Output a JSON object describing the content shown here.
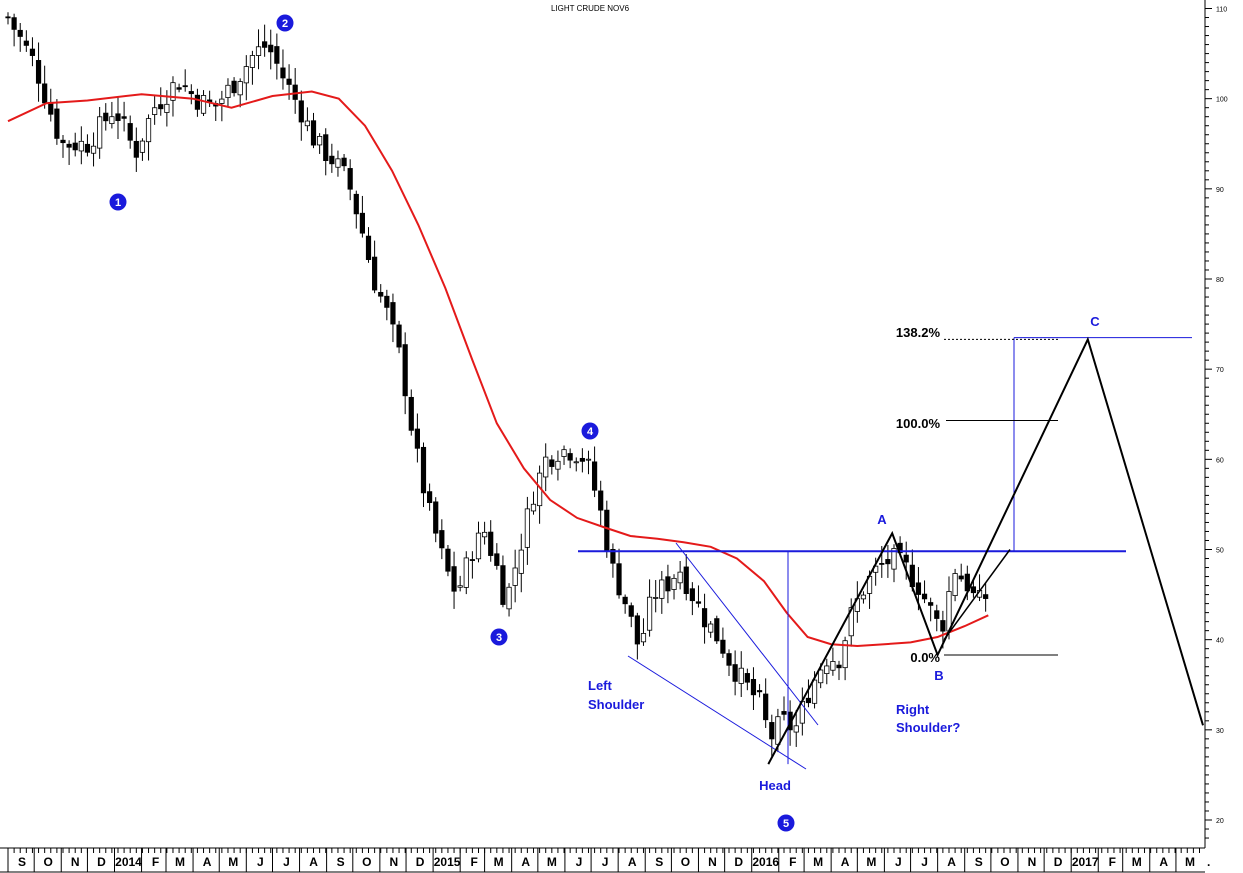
{
  "chart_data": {
    "type": "candlestick",
    "title": "LIGHT CRUDE NOV6",
    "y_axis": {
      "ticks": [
        20,
        30,
        40,
        50,
        60,
        70,
        80,
        90,
        100,
        110
      ],
      "ylim": [
        18.5,
        111
      ]
    },
    "months": [
      "S",
      "O",
      "N",
      "D",
      "2014",
      "F",
      "M",
      "A",
      "M",
      "J",
      "J",
      "A",
      "S",
      "O",
      "N",
      "D",
      "2015",
      "F",
      "M",
      "A",
      "M",
      "J",
      "J",
      "A",
      "S",
      "O",
      "N",
      "D",
      "2016",
      "F",
      "M",
      "A",
      "M",
      "J",
      "J",
      "A",
      "S",
      "O",
      "N",
      "D",
      "2017",
      "F",
      "M",
      "A",
      "M"
    ],
    "close_path": [
      [
        "2013-09-01",
        109
      ],
      [
        "2013-10-01",
        104
      ],
      [
        "2013-11-01",
        95
      ],
      [
        "2013-12-01",
        95
      ],
      [
        "2014-01-01",
        99
      ],
      [
        "2014-01-25",
        94
      ],
      [
        "2014-02-15",
        99
      ],
      [
        "2014-03-15",
        102
      ],
      [
        "2014-04-05",
        100
      ],
      [
        "2014-04-25",
        99
      ],
      [
        "2014-05-20",
        102
      ],
      [
        "2014-06-10",
        105
      ],
      [
        "2014-06-25",
        106
      ],
      [
        "2014-07-10",
        103
      ],
      [
        "2014-08-01",
        99
      ],
      [
        "2014-08-20",
        95
      ],
      [
        "2014-09-10",
        93
      ],
      [
        "2014-09-25",
        91
      ],
      [
        "2014-10-10",
        86
      ],
      [
        "2014-10-25",
        80
      ],
      [
        "2014-11-10",
        76
      ],
      [
        "2014-11-25",
        71
      ],
      [
        "2014-12-10",
        62
      ],
      [
        "2014-12-25",
        55
      ],
      [
        "2015-01-15",
        48
      ],
      [
        "2015-01-28",
        45
      ],
      [
        "2015-02-15",
        50
      ],
      [
        "2015-03-01",
        52
      ],
      [
        "2015-03-15",
        48
      ],
      [
        "2015-03-25",
        44
      ],
      [
        "2015-04-10",
        50
      ],
      [
        "2015-04-25",
        56
      ],
      [
        "2015-05-10",
        60
      ],
      [
        "2015-05-25",
        61
      ],
      [
        "2015-06-10",
        61
      ],
      [
        "2015-06-25",
        60
      ],
      [
        "2015-07-10",
        55
      ],
      [
        "2015-07-25",
        48
      ],
      [
        "2015-08-10",
        44
      ],
      [
        "2015-08-25",
        39
      ],
      [
        "2015-09-10",
        45
      ],
      [
        "2015-09-25",
        46
      ],
      [
        "2015-10-10",
        48
      ],
      [
        "2015-10-25",
        45
      ],
      [
        "2015-11-10",
        42
      ],
      [
        "2015-11-25",
        40
      ],
      [
        "2015-12-10",
        37
      ],
      [
        "2015-12-25",
        35
      ],
      [
        "2016-01-10",
        33
      ],
      [
        "2016-01-22",
        29
      ],
      [
        "2016-02-05",
        31
      ],
      [
        "2016-02-20",
        30
      ],
      [
        "2016-03-05",
        34
      ],
      [
        "2016-03-25",
        38
      ],
      [
        "2016-04-10",
        38
      ],
      [
        "2016-04-25",
        43
      ],
      [
        "2016-05-10",
        46
      ],
      [
        "2016-05-25",
        48
      ],
      [
        "2016-06-10",
        49
      ],
      [
        "2016-06-25",
        48
      ],
      [
        "2016-07-10",
        46
      ],
      [
        "2016-07-25",
        43
      ],
      [
        "2016-08-05",
        41
      ],
      [
        "2016-08-20",
        48
      ],
      [
        "2016-09-05",
        46
      ],
      [
        "2016-09-15",
        44
      ],
      [
        "2016-09-28",
        45
      ]
    ],
    "moving_average": [
      [
        "2013-09-01",
        97.5
      ],
      [
        "2013-10-15",
        99.5
      ],
      [
        "2013-12-01",
        99.8
      ],
      [
        "2014-02-01",
        100.5
      ],
      [
        "2014-04-01",
        100
      ],
      [
        "2014-05-15",
        99
      ],
      [
        "2014-07-01",
        100.3
      ],
      [
        "2014-08-15",
        100.8
      ],
      [
        "2014-09-15",
        100
      ],
      [
        "2014-10-15",
        97
      ],
      [
        "2014-11-15",
        92
      ],
      [
        "2014-12-15",
        86
      ],
      [
        "2015-01-15",
        79
      ],
      [
        "2015-02-15",
        71
      ],
      [
        "2015-03-15",
        64
      ],
      [
        "2015-04-15",
        59
      ],
      [
        "2015-05-15",
        55.5
      ],
      [
        "2015-06-15",
        53.5
      ],
      [
        "2015-07-15",
        52.5
      ],
      [
        "2015-08-15",
        51.5
      ],
      [
        "2015-09-15",
        51.2
      ],
      [
        "2015-10-15",
        50.8
      ],
      [
        "2015-11-15",
        50.3
      ],
      [
        "2015-12-15",
        49
      ],
      [
        "2016-01-15",
        46.5
      ],
      [
        "2016-02-10",
        43
      ],
      [
        "2016-03-05",
        40.3
      ],
      [
        "2016-04-01",
        39.5
      ],
      [
        "2016-05-01",
        39.3
      ],
      [
        "2016-06-01",
        39.5
      ],
      [
        "2016-07-01",
        39.7
      ],
      [
        "2016-08-01",
        40.3
      ],
      [
        "2016-09-01",
        41.5
      ],
      [
        "2016-09-28",
        42.7
      ]
    ],
    "horizontal_levels": {
      "neckline": 49.8,
      "fib_0": 38.3,
      "fib_100": 64.3,
      "fib_138": 73.3,
      "c_line": 73.5
    },
    "labels": {
      "wave_1": "1",
      "wave_2": "2",
      "wave_3": "3",
      "wave_4": "4",
      "wave_5": "5",
      "left_shoulder_1": "Left",
      "left_shoulder_2": "Shoulder",
      "head": "Head",
      "right_shoulder_1": "Right",
      "right_shoulder_2": "Shoulder?",
      "A": "A",
      "B": "B",
      "C": "C",
      "fib_138": "138.2%",
      "fib_100": "100.0%",
      "fib_0": "0.0%"
    },
    "projection_path": [
      [
        "2016-01-20",
        26.2
      ],
      [
        "2016-06-10",
        51.8
      ],
      [
        "2016-08-01",
        38.3
      ],
      [
        "2017-01-20",
        73.3
      ],
      [
        "2017-06-01",
        30.5
      ]
    ],
    "colors": {
      "candles": "#000000",
      "moving_average": "#e41a1a",
      "annotations": "#1a1adc",
      "projection": "#000000"
    },
    "grid": false,
    "legend": "none"
  }
}
